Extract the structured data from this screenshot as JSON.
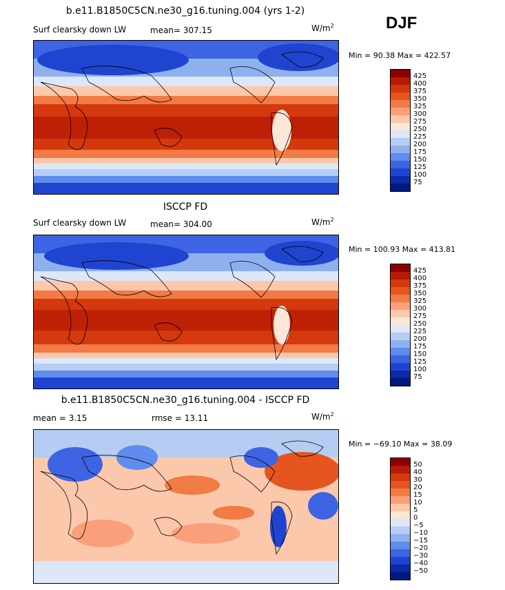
{
  "season": "DJF",
  "panels": [
    {
      "title": "b.e11.B1850C5CN.ne30_g16.tuning.004 (yrs 1-2)",
      "variable": "Surf clearsky down LW",
      "mean": "mean= 307.15",
      "rmse": "",
      "units": "W/m",
      "units_sup": "2",
      "minmax": "Min =  90.38 Max = 422.57",
      "cbar_labels": [
        "425",
        "400",
        "375",
        "350",
        "325",
        "300",
        "275",
        "250",
        "225",
        "200",
        "175",
        "150",
        "125",
        "100",
        "75"
      ],
      "cbar_colors": [
        "#8b0000",
        "#b81a06",
        "#d4380d",
        "#e6541f",
        "#f27a45",
        "#f9a07a",
        "#fcc8ab",
        "#fbe6d8",
        "#dce7f7",
        "#b5cdf2",
        "#8fb0ee",
        "#5f8ced",
        "#3d64e3",
        "#1f44cf",
        "#0c29a8",
        "#001a80"
      ]
    },
    {
      "title": "ISCCP FD",
      "variable": "Surf clearsky down LW",
      "mean": "mean= 304.00",
      "rmse": "",
      "units": "W/m",
      "units_sup": "2",
      "minmax": "Min = 100.93 Max = 413.81",
      "cbar_labels": [
        "425",
        "400",
        "375",
        "350",
        "325",
        "300",
        "275",
        "250",
        "225",
        "200",
        "175",
        "150",
        "125",
        "100",
        "75"
      ],
      "cbar_colors": [
        "#8b0000",
        "#b81a06",
        "#d4380d",
        "#e6541f",
        "#f27a45",
        "#f9a07a",
        "#fcc8ab",
        "#fbe6d8",
        "#dce7f7",
        "#b5cdf2",
        "#8fb0ee",
        "#5f8ced",
        "#3d64e3",
        "#1f44cf",
        "#0c29a8",
        "#001a80"
      ]
    },
    {
      "title": "b.e11.B1850C5CN.ne30_g16.tuning.004 - ISCCP FD",
      "variable": "",
      "mean": "mean =    3.15",
      "rmse": "rmse =   13.11",
      "units": "W/m",
      "units_sup": "2",
      "minmax": "Min = −69.10 Max =  38.09",
      "cbar_labels": [
        "50",
        "40",
        "30",
        "20",
        "15",
        "10",
        "5",
        "0",
        "−5",
        "−10",
        "−15",
        "−20",
        "−30",
        "−40",
        "−50"
      ],
      "cbar_colors": [
        "#8b0000",
        "#b81a06",
        "#d4380d",
        "#e6541f",
        "#f27a45",
        "#f9a07a",
        "#fcc8ab",
        "#fbe6d8",
        "#dce7f7",
        "#b5cdf2",
        "#8fb0ee",
        "#5f8ced",
        "#3d64e3",
        "#1f44cf",
        "#0c29a8",
        "#001a80"
      ]
    }
  ]
}
